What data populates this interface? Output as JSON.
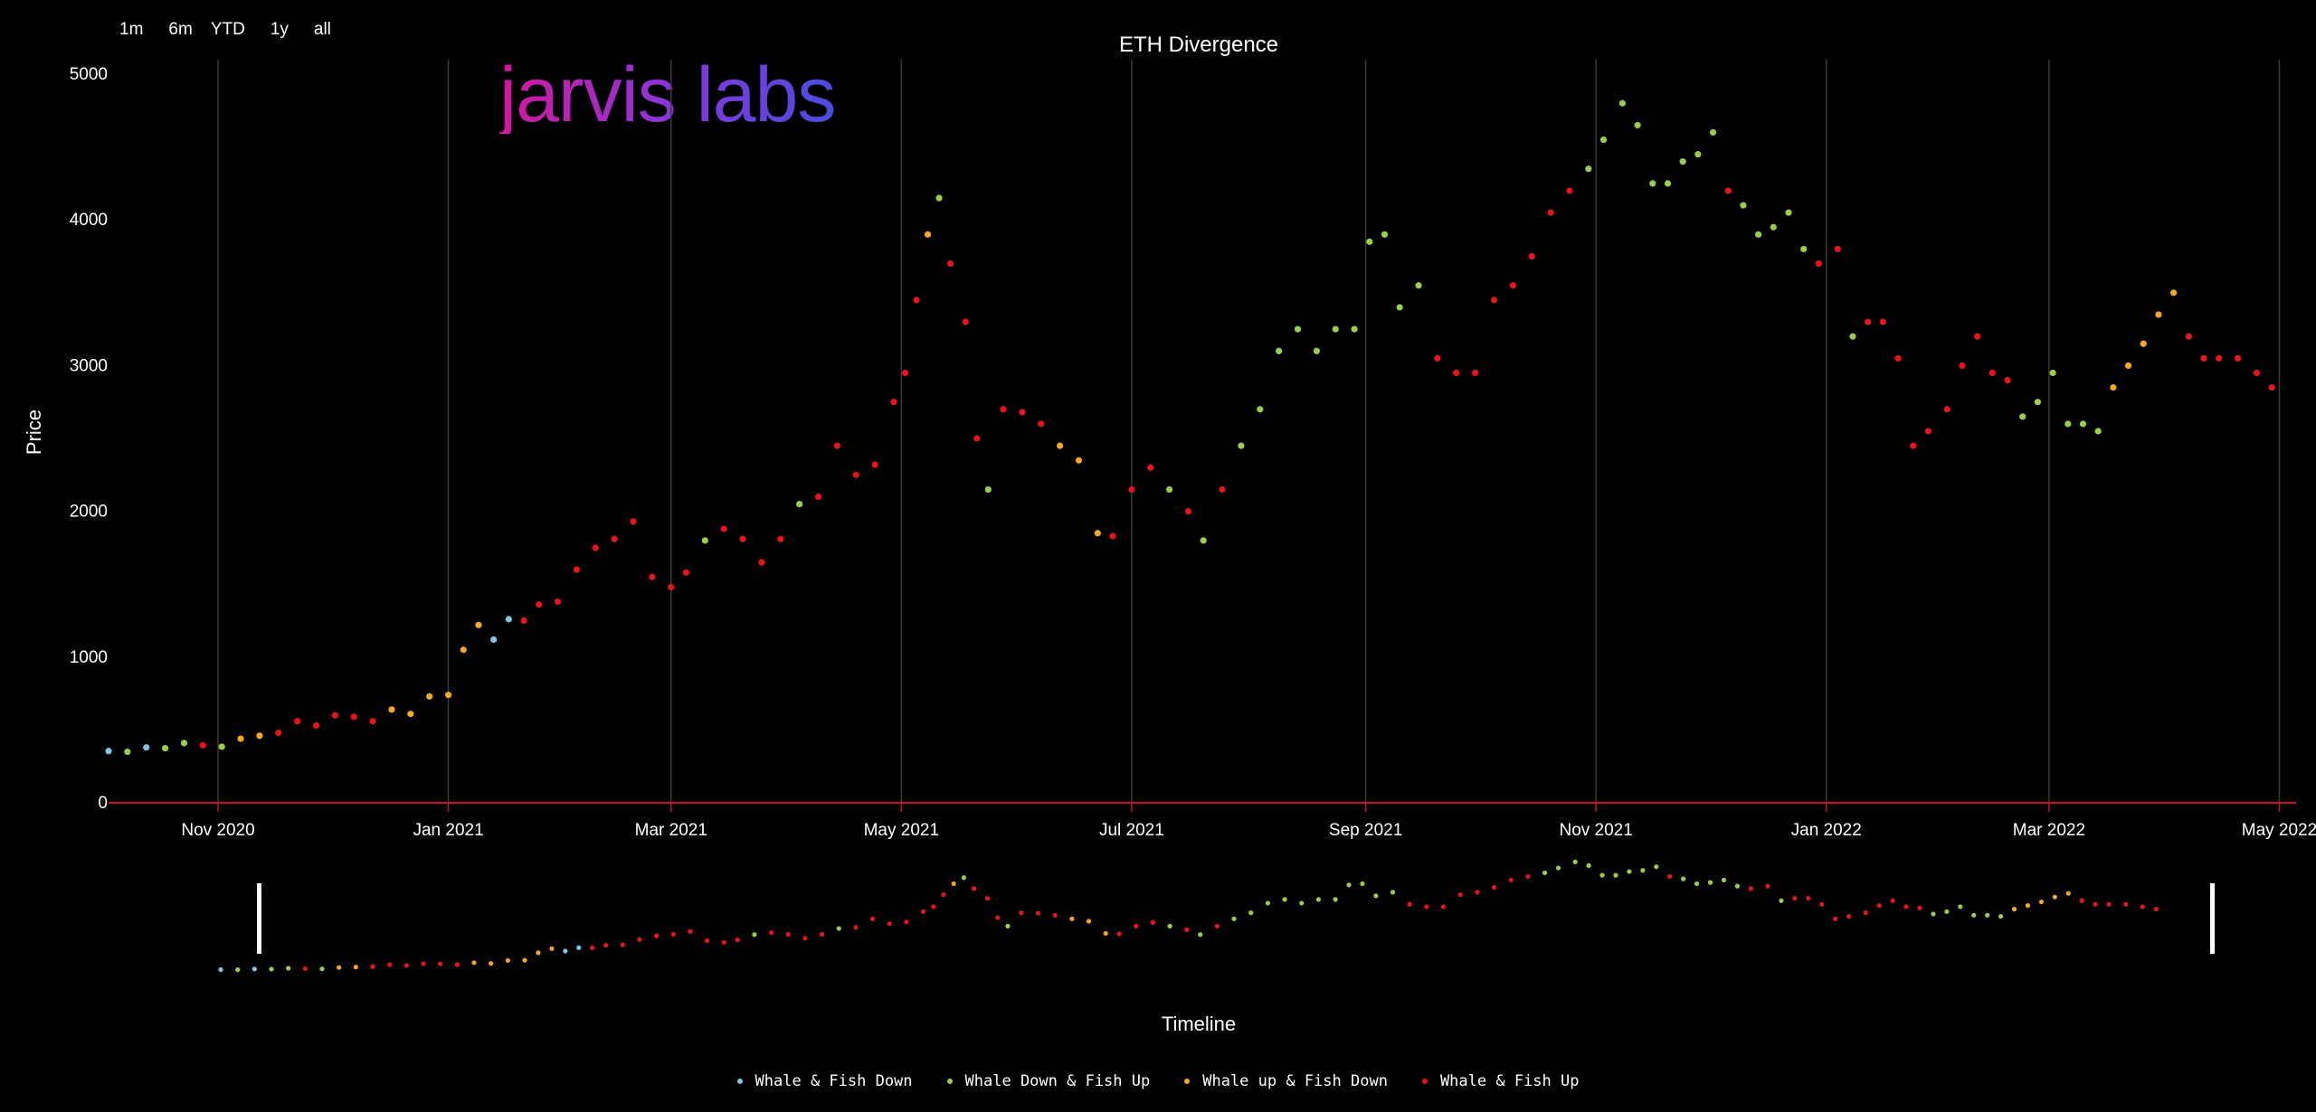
{
  "range_buttons": [
    "1m",
    "6m",
    "YTD",
    "1y",
    "all"
  ],
  "logo_text": "jarvis labs",
  "colors": {
    "whale_fish_down": "#7fc4e8",
    "whale_down_fish_up": "#9acd4a",
    "whale_up_fish_down": "#f5a623",
    "whale_fish_up": "#e8141c",
    "baseline": "#c0142a",
    "grid": "#3a3a3a"
  },
  "chart_data": {
    "type": "scatter",
    "title": "ETH Divergence",
    "ylabel": "Price",
    "xlabel": "Timeline",
    "ylim": [
      0,
      5000
    ],
    "xlim": [
      "2020-10-03",
      "2022-05-04"
    ],
    "y_ticks": [
      0,
      1000,
      2000,
      3000,
      4000,
      5000
    ],
    "x_ticks": [
      {
        "date": "2020-11-01",
        "label": "Nov 2020"
      },
      {
        "date": "2021-01-01",
        "label": "Jan 2021"
      },
      {
        "date": "2021-03-01",
        "label": "Mar 2021"
      },
      {
        "date": "2021-05-01",
        "label": "May 2021"
      },
      {
        "date": "2021-07-01",
        "label": "Jul 2021"
      },
      {
        "date": "2021-09-01",
        "label": "Sep 2021"
      },
      {
        "date": "2021-11-01",
        "label": "Nov 2021"
      },
      {
        "date": "2022-01-01",
        "label": "Jan 2022"
      },
      {
        "date": "2022-03-01",
        "label": "Mar 2022"
      },
      {
        "date": "2022-05-01",
        "label": "May 2022"
      }
    ],
    "grid": "vertical",
    "legend_position": "bottom-center",
    "series": [
      {
        "name": "Whale & Fish Down",
        "color_key": "whale_fish_down"
      },
      {
        "name": "Whale Down & Fish Up",
        "color_key": "whale_down_fish_up"
      },
      {
        "name": "Whale up & Fish Down",
        "color_key": "whale_up_fish_down"
      },
      {
        "name": "Whale & Fish Up",
        "color_key": "whale_fish_up"
      }
    ],
    "points": [
      [
        "2020-10-03",
        355,
        0
      ],
      [
        "2020-10-08",
        350,
        1
      ],
      [
        "2020-10-13",
        380,
        0
      ],
      [
        "2020-10-18",
        375,
        1
      ],
      [
        "2020-10-23",
        410,
        1
      ],
      [
        "2020-10-28",
        395,
        3
      ],
      [
        "2020-11-02",
        385,
        1
      ],
      [
        "2020-11-07",
        440,
        2
      ],
      [
        "2020-11-12",
        460,
        2
      ],
      [
        "2020-11-17",
        480,
        3
      ],
      [
        "2020-11-22",
        560,
        3
      ],
      [
        "2020-11-27",
        530,
        3
      ],
      [
        "2020-12-02",
        600,
        3
      ],
      [
        "2020-12-07",
        590,
        3
      ],
      [
        "2020-12-12",
        560,
        3
      ],
      [
        "2020-12-17",
        640,
        2
      ],
      [
        "2020-12-22",
        610,
        2
      ],
      [
        "2020-12-27",
        730,
        2
      ],
      [
        "2021-01-01",
        740,
        2
      ],
      [
        "2021-01-05",
        1050,
        2
      ],
      [
        "2021-01-09",
        1220,
        2
      ],
      [
        "2021-01-13",
        1120,
        0
      ],
      [
        "2021-01-17",
        1260,
        0
      ],
      [
        "2021-01-21",
        1250,
        3
      ],
      [
        "2021-01-25",
        1360,
        3
      ],
      [
        "2021-01-30",
        1380,
        3
      ],
      [
        "2021-02-04",
        1600,
        3
      ],
      [
        "2021-02-09",
        1750,
        3
      ],
      [
        "2021-02-14",
        1810,
        3
      ],
      [
        "2021-02-19",
        1930,
        3
      ],
      [
        "2021-02-24",
        1550,
        3
      ],
      [
        "2021-03-01",
        1480,
        3
      ],
      [
        "2021-03-05",
        1580,
        3
      ],
      [
        "2021-03-10",
        1800,
        1
      ],
      [
        "2021-03-15",
        1880,
        3
      ],
      [
        "2021-03-20",
        1810,
        3
      ],
      [
        "2021-03-25",
        1650,
        3
      ],
      [
        "2021-03-30",
        1810,
        3
      ],
      [
        "2021-04-04",
        2050,
        1
      ],
      [
        "2021-04-09",
        2100,
        3
      ],
      [
        "2021-04-14",
        2450,
        3
      ],
      [
        "2021-04-19",
        2250,
        3
      ],
      [
        "2021-04-24",
        2320,
        3
      ],
      [
        "2021-04-29",
        2750,
        3
      ],
      [
        "2021-05-02",
        2950,
        3
      ],
      [
        "2021-05-05",
        3450,
        3
      ],
      [
        "2021-05-08",
        3900,
        2
      ],
      [
        "2021-05-11",
        4150,
        1
      ],
      [
        "2021-05-14",
        3700,
        3
      ],
      [
        "2021-05-18",
        3300,
        3
      ],
      [
        "2021-05-21",
        2500,
        3
      ],
      [
        "2021-05-24",
        2150,
        1
      ],
      [
        "2021-05-28",
        2700,
        3
      ],
      [
        "2021-06-02",
        2680,
        3
      ],
      [
        "2021-06-07",
        2600,
        3
      ],
      [
        "2021-06-12",
        2450,
        2
      ],
      [
        "2021-06-17",
        2350,
        2
      ],
      [
        "2021-06-22",
        1850,
        2
      ],
      [
        "2021-06-26",
        1830,
        3
      ],
      [
        "2021-07-01",
        2150,
        3
      ],
      [
        "2021-07-06",
        2300,
        3
      ],
      [
        "2021-07-11",
        2150,
        1
      ],
      [
        "2021-07-16",
        2000,
        3
      ],
      [
        "2021-07-20",
        1800,
        1
      ],
      [
        "2021-07-25",
        2150,
        3
      ],
      [
        "2021-07-30",
        2450,
        1
      ],
      [
        "2021-08-04",
        2700,
        1
      ],
      [
        "2021-08-09",
        3100,
        1
      ],
      [
        "2021-08-14",
        3250,
        1
      ],
      [
        "2021-08-19",
        3100,
        1
      ],
      [
        "2021-08-24",
        3250,
        1
      ],
      [
        "2021-08-29",
        3250,
        1
      ],
      [
        "2021-09-02",
        3850,
        1
      ],
      [
        "2021-09-06",
        3900,
        1
      ],
      [
        "2021-09-10",
        3400,
        1
      ],
      [
        "2021-09-15",
        3550,
        1
      ],
      [
        "2021-09-20",
        3050,
        3
      ],
      [
        "2021-09-25",
        2950,
        3
      ],
      [
        "2021-09-30",
        2950,
        3
      ],
      [
        "2021-10-05",
        3450,
        3
      ],
      [
        "2021-10-10",
        3550,
        3
      ],
      [
        "2021-10-15",
        3750,
        3
      ],
      [
        "2021-10-20",
        4050,
        3
      ],
      [
        "2021-10-25",
        4200,
        3
      ],
      [
        "2021-10-30",
        4350,
        1
      ],
      [
        "2021-11-03",
        4550,
        1
      ],
      [
        "2021-11-08",
        4800,
        1
      ],
      [
        "2021-11-12",
        4650,
        1
      ],
      [
        "2021-11-16",
        4250,
        1
      ],
      [
        "2021-11-20",
        4250,
        1
      ],
      [
        "2021-11-24",
        4400,
        1
      ],
      [
        "2021-11-28",
        4450,
        1
      ],
      [
        "2021-12-02",
        4600,
        1
      ],
      [
        "2021-12-06",
        4200,
        3
      ],
      [
        "2021-12-10",
        4100,
        1
      ],
      [
        "2021-12-14",
        3900,
        1
      ],
      [
        "2021-12-18",
        3950,
        1
      ],
      [
        "2021-12-22",
        4050,
        1
      ],
      [
        "2021-12-26",
        3800,
        1
      ],
      [
        "2021-12-30",
        3700,
        3
      ],
      [
        "2022-01-04",
        3800,
        3
      ],
      [
        "2022-01-08",
        3200,
        1
      ],
      [
        "2022-01-12",
        3300,
        3
      ],
      [
        "2022-01-16",
        3300,
        3
      ],
      [
        "2022-01-20",
        3050,
        3
      ],
      [
        "2022-01-24",
        2450,
        3
      ],
      [
        "2022-01-28",
        2550,
        3
      ],
      [
        "2022-02-02",
        2700,
        3
      ],
      [
        "2022-02-06",
        3000,
        3
      ],
      [
        "2022-02-10",
        3200,
        3
      ],
      [
        "2022-02-14",
        2950,
        3
      ],
      [
        "2022-02-18",
        2900,
        3
      ],
      [
        "2022-02-22",
        2650,
        1
      ],
      [
        "2022-02-26",
        2750,
        1
      ],
      [
        "2022-03-02",
        2950,
        1
      ],
      [
        "2022-03-06",
        2600,
        1
      ],
      [
        "2022-03-10",
        2600,
        1
      ],
      [
        "2022-03-14",
        2550,
        1
      ],
      [
        "2022-03-18",
        2850,
        2
      ],
      [
        "2022-03-22",
        3000,
        2
      ],
      [
        "2022-03-26",
        3150,
        2
      ],
      [
        "2022-03-30",
        3350,
        2
      ],
      [
        "2022-04-03",
        3500,
        2
      ],
      [
        "2022-04-07",
        3200,
        3
      ],
      [
        "2022-04-11",
        3050,
        3
      ],
      [
        "2022-04-15",
        3050,
        3
      ],
      [
        "2022-04-20",
        3050,
        3
      ],
      [
        "2022-04-25",
        2950,
        3
      ],
      [
        "2022-04-29",
        2850,
        3
      ]
    ]
  }
}
